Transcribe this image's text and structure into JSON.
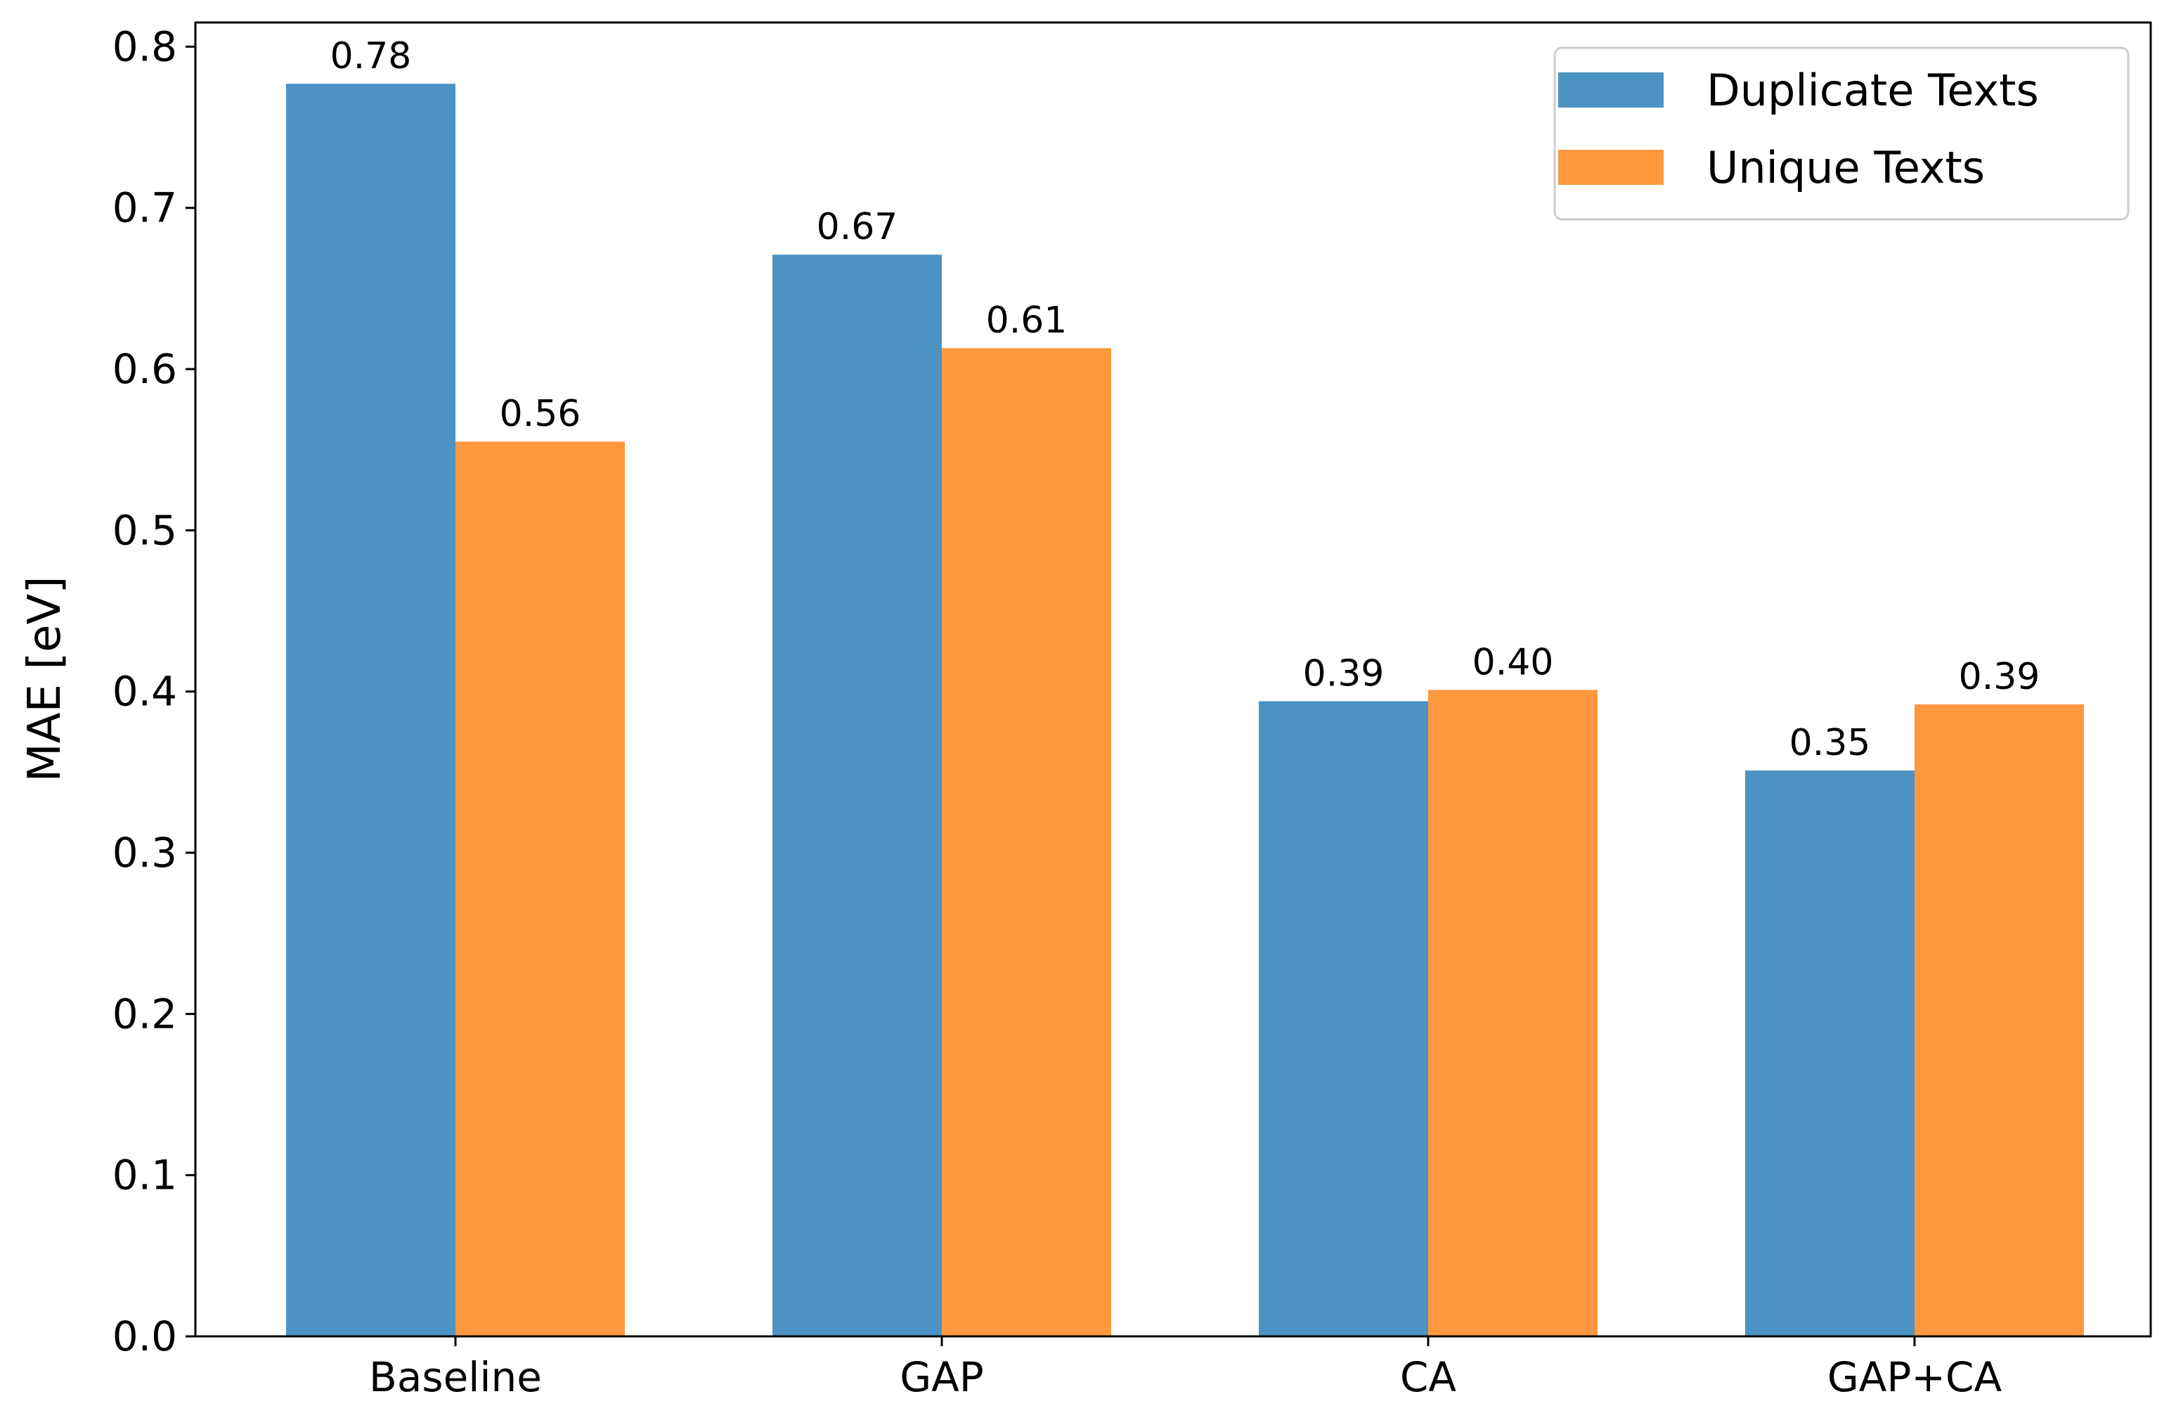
{
  "chart_data": {
    "type": "bar",
    "title": "",
    "xlabel": "",
    "ylabel": "MAE [eV]",
    "categories": [
      "Baseline",
      "GAP",
      "CA",
      "GAP+CA"
    ],
    "ylim": [
      0,
      0.815
    ],
    "yticks": [
      "0.0",
      "0.1",
      "0.2",
      "0.3",
      "0.4",
      "0.5",
      "0.6",
      "0.7",
      "0.8"
    ],
    "grid": false,
    "legend_position": "top-right",
    "series": [
      {
        "name": "Duplicate Texts",
        "color": "#4c93c3",
        "values": [
          0.777,
          0.671,
          0.394,
          0.351
        ],
        "labels": [
          "0.78",
          "0.67",
          "0.39",
          "0.35"
        ]
      },
      {
        "name": "Unique Texts",
        "color": "#fe983f",
        "values": [
          0.555,
          0.613,
          0.401,
          0.392
        ],
        "labels": [
          "0.56",
          "0.61",
          "0.40",
          "0.39"
        ]
      }
    ]
  }
}
